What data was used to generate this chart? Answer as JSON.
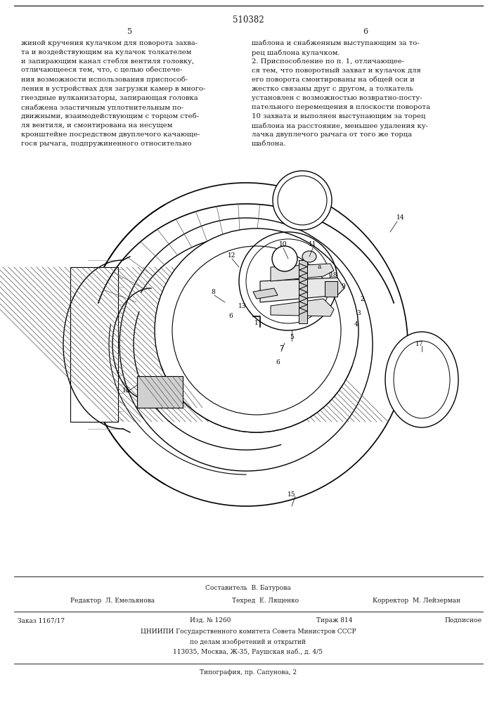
{
  "page_number": "510382",
  "bg_color": "#ffffff",
  "text_color": "#1a1a1a",
  "left_col_header": "5",
  "right_col_header": "6",
  "left_text_lines": [
    "жиной кручения кулачком для поворота захва-",
    "та и воздействующим на кулачок толкателем",
    "и запирающим канал стебля вентиля головку,",
    "отличающееся тем, что, с целью обеспече-",
    "ния возможности использования приспособ-",
    "ления в устройствах для загрузки камер в много-",
    "гнездные вулканизаторы, запирающая головка",
    "снабжена эластичным уплотнительным по-",
    "движными, взаимодействующим с торцом стеб-",
    "ля вентиля, и смонтирована на несущем",
    "кронштейне посредством двуплечого качающе-",
    "гося рычага, подпружиненного относительно"
  ],
  "right_text_lines": [
    "шаблона и снабженным выступающим за то-",
    "рец шаблона кулачком.",
    "2. Приспособление по п. 1, отличающее-",
    "ся тем, что поворотный захват и кулачок для",
    "его поворота смонтированы на общей оси и",
    "жестко связаны друг с другом, а толкатель",
    "установлен с возможностью возвратно-посту-",
    "пательного перемещения в плоскости поворота",
    "10 захвата и выполнен выступающим за торец",
    "шаблона на расстояние, меньшее удаления ку-",
    "лачка двуплечого рычага от того же торца",
    "шаблона."
  ],
  "footer_composer": "Составитель  В. Батурова",
  "footer_editor": "Редактор  Л. Емельянова",
  "footer_techred": "Техред  Е. Лященко",
  "footer_corrector": "Корректор  М. Лейзерман",
  "footer_order": "Заказ 1167/17",
  "footer_izdanie": "Изд. № 1260",
  "footer_tirazh": "Тираж 814",
  "footer_podpisnoe": "Подписное",
  "footer_org": "ЦНИИПИ Государственного комитета Совета Министров СССР",
  "footer_org2": "по делам изобретений и открытий",
  "footer_addr": "113035, Москва, Ж-35, Раушская наб., д. 4/5",
  "footer_typography": "Типография, пр. Сапунова, 2"
}
